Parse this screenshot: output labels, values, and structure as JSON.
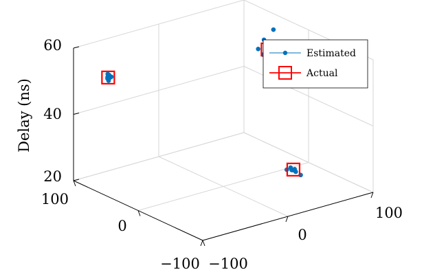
{
  "chart_data": {
    "type": "scatter",
    "projection": "3d",
    "zlabel": "Delay (ns)",
    "xlim": [
      -100,
      100
    ],
    "ylim": [
      -100,
      100
    ],
    "zlim": [
      20,
      60
    ],
    "x_ticks": [
      "−100",
      "0",
      "100"
    ],
    "y_ticks": [
      "−100",
      "0",
      "100"
    ],
    "z_ticks": [
      "20",
      "40",
      "60"
    ],
    "grid": true,
    "legend_position": "top-right",
    "colors": {
      "estimated": "#0072BD",
      "actual": "#FF0000",
      "grid": "#d6d6d6",
      "axis": "#000000"
    },
    "series": [
      {
        "name": "Estimated",
        "marker": "dot",
        "points": [
          [
            -70,
            85,
            50.5
          ],
          [
            -72,
            82,
            51.5
          ],
          [
            -68,
            86,
            50.0
          ],
          [
            -71,
            84,
            49.5
          ],
          [
            -69,
            88,
            51.0
          ],
          [
            -73,
            83,
            50.8
          ],
          [
            -70,
            87,
            49.8
          ],
          [
            -67,
            85,
            50.3
          ],
          [
            86,
            35,
            54.0
          ],
          [
            80,
            28,
            59.0
          ],
          [
            84,
            42,
            51.0
          ],
          [
            80,
            44,
            50.0
          ],
          [
            82,
            30,
            53.5
          ],
          [
            86,
            43,
            48.0
          ],
          [
            83,
            38,
            52.5
          ],
          [
            88,
            32,
            51.5
          ],
          [
            81,
            36,
            53.0
          ],
          [
            85,
            40,
            50.5
          ],
          [
            79,
            34,
            52.0
          ],
          [
            84,
            26,
            51.0
          ],
          [
            75,
            45,
            52.0
          ],
          [
            78,
            40,
            55.0
          ],
          [
            14,
            -92,
            32.5
          ],
          [
            15,
            -88,
            31.8
          ],
          [
            14,
            -89,
            32.0
          ],
          [
            10,
            -85,
            32.0
          ],
          [
            12,
            -90,
            32.2
          ],
          [
            16,
            -91,
            31.5
          ],
          [
            13,
            -87,
            32.6
          ],
          [
            18,
            -96,
            30.8
          ]
        ]
      },
      {
        "name": "Actual",
        "marker": "square",
        "points": [
          [
            -70,
            86,
            50.2
          ],
          [
            80,
            37,
            52.2
          ],
          [
            14,
            -90,
            32.2
          ]
        ]
      }
    ]
  }
}
